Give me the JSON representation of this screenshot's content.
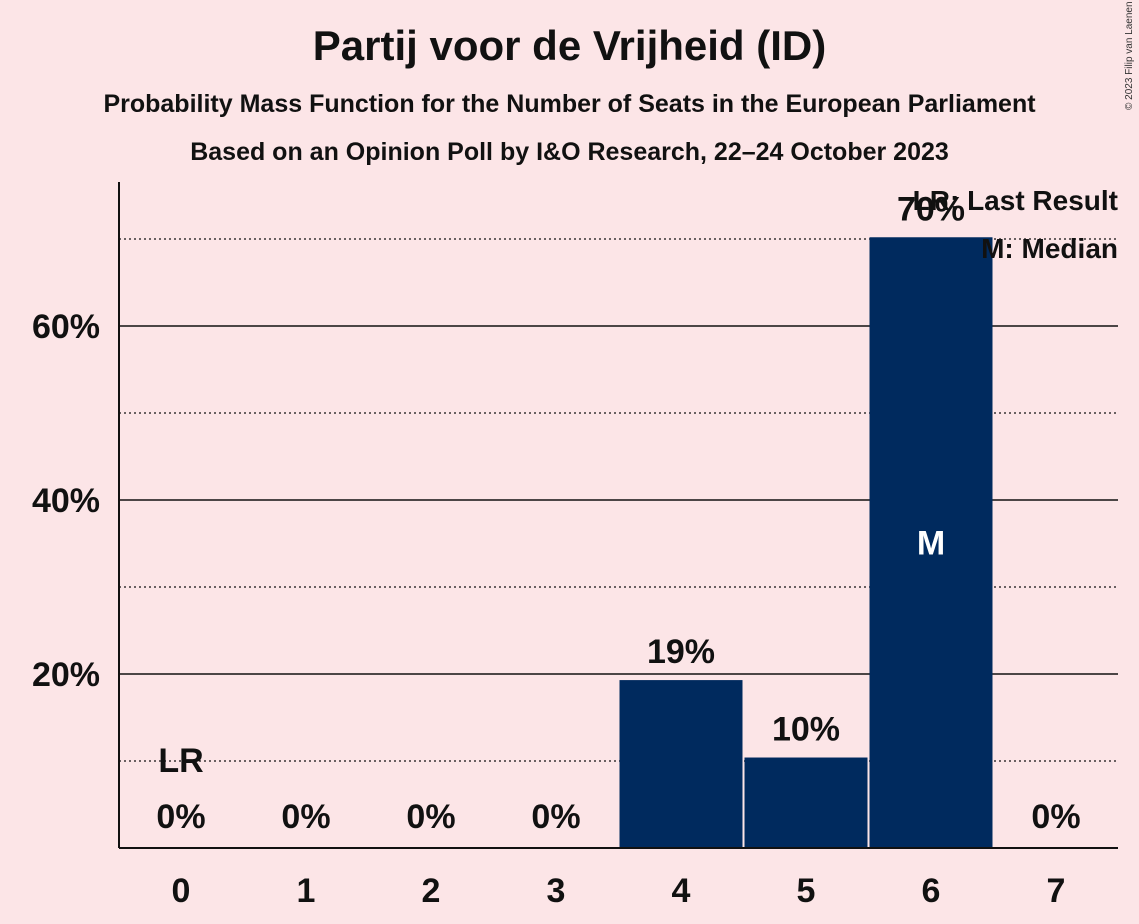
{
  "header": {
    "title": "Partij voor de Vrijheid (ID)",
    "subtitle": "Probability Mass Function for the Number of Seats in the European Parliament",
    "poll": "Based on an Opinion Poll by I&O Research, 22–24 October 2023",
    "copyright": "© 2023 Filip van Laenen"
  },
  "legend": {
    "last_result": "LR: Last Result",
    "median": "M: Median"
  },
  "chart_data": {
    "type": "bar",
    "categories": [
      "0",
      "1",
      "2",
      "3",
      "4",
      "5",
      "6",
      "7"
    ],
    "values": [
      0,
      0,
      0,
      0,
      19.3,
      10.4,
      70.2,
      0
    ],
    "data_labels": [
      "0%",
      "0%",
      "0%",
      "0%",
      "19%",
      "10%",
      "70%",
      "0%"
    ],
    "ylim": [
      0,
      76
    ],
    "yticks": [
      20,
      40,
      60
    ],
    "ytick_labels": [
      "20%",
      "40%",
      "60%"
    ],
    "minor_gridlines": [
      10,
      30,
      50,
      70
    ],
    "last_result_category": "0",
    "last_result_label": "LR",
    "median_category": "6",
    "median_label": "M",
    "bar_color": "#002A5E",
    "grid": true,
    "legend_position": "top-right"
  }
}
